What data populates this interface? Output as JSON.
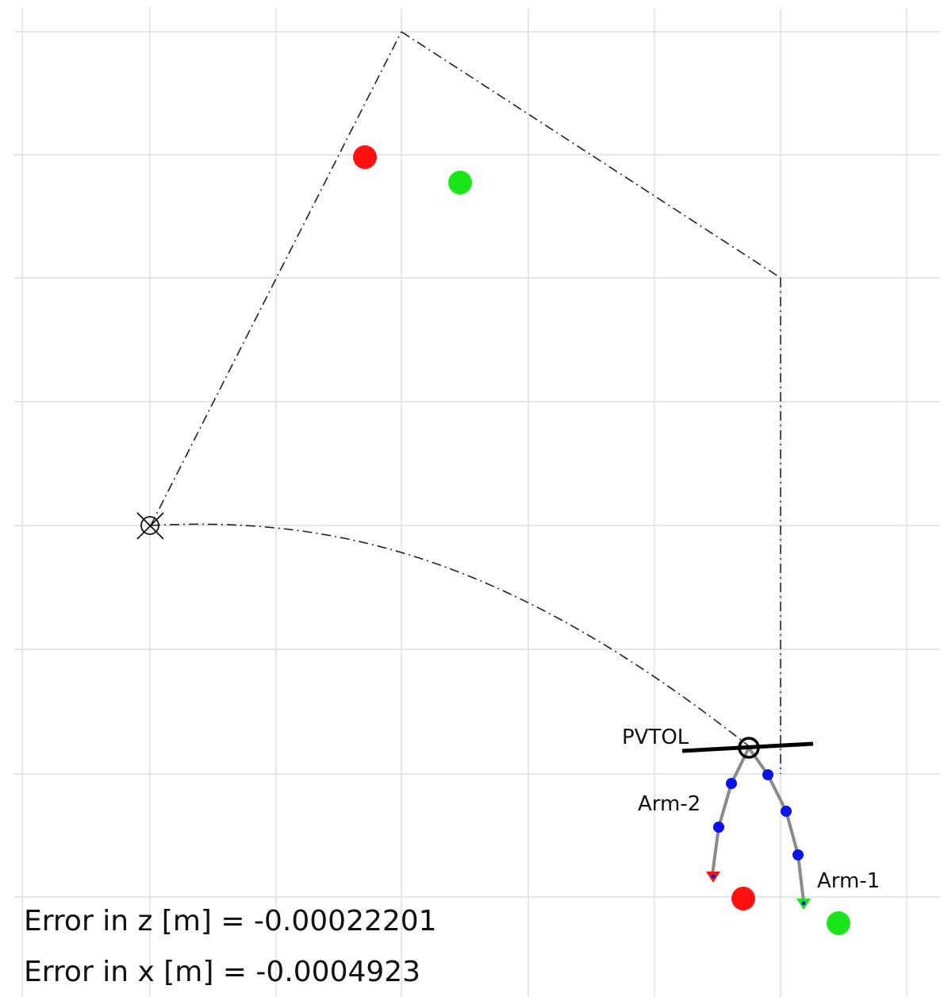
{
  "labels": {
    "vehicle": "PVTOL",
    "arm2": "Arm-2",
    "arm1": "Arm-1"
  },
  "errors": [
    {
      "label": "Error in z [m] = ",
      "value": "-0.00022201"
    },
    {
      "label": "Error in x [m] = ",
      "value": "-0.0004923"
    }
  ],
  "colors": {
    "grid": "#d8d8d8",
    "path": "#222222",
    "arm": "#8a8a8a",
    "joint": "#0a14e6",
    "target_red": "#ff1010",
    "target_green": "#19e619",
    "rotor": "#000000"
  },
  "icons": {
    "start_marker": "circle-cross-icon",
    "vehicle_center": "circle-icon",
    "goal": "starburst-icon",
    "end_effector": "triangle-down-icon"
  }
}
